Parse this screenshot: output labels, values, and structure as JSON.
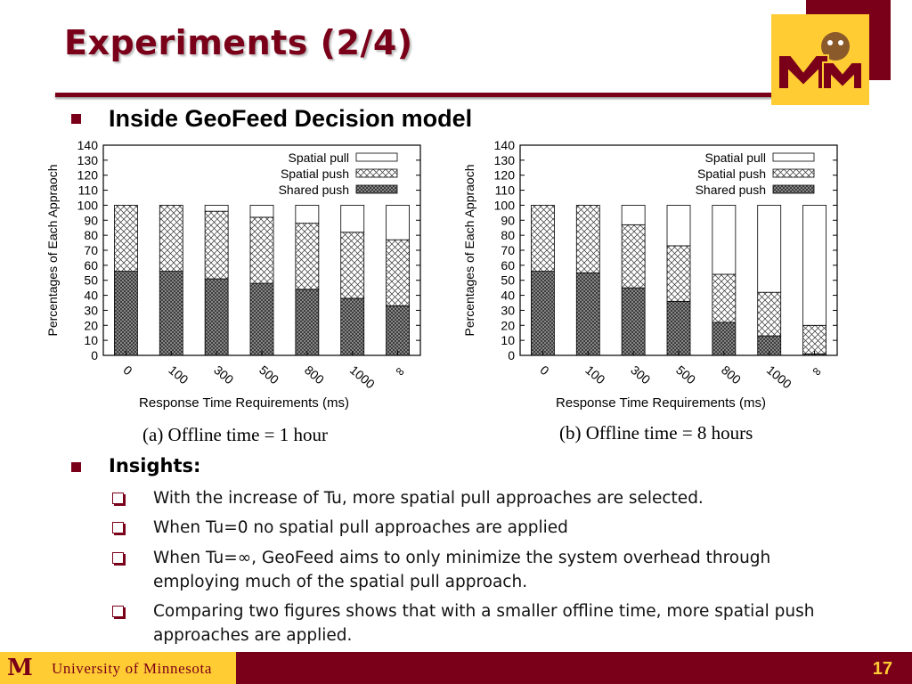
{
  "slide": {
    "title": "Experiments (2/4)",
    "main_bullet": "Inside GeoFeed Decision model",
    "page_number": "17",
    "footer": {
      "university": "University of Minnesota",
      "logo_letter": "M"
    }
  },
  "colors": {
    "maroon": "#7a0019",
    "gold": "#ffcc33"
  },
  "captions": [
    "(a) Offline time = 1 hour",
    "(b) Offline time = 8 hours"
  ],
  "insights": {
    "title": "Insights:",
    "items": [
      "With the increase of Tu, more spatial pull approaches are selected.",
      "When Tu=0 no spatial pull approaches are applied",
      "When Tu=∞, GeoFeed aims to only minimize the system overhead through employing much of the spatial pull approach.",
      "Comparing two figures shows that with a smaller offline time, more spatial push approaches are applied."
    ]
  },
  "chart_data": [
    {
      "type": "bar",
      "stacked": true,
      "xlabel": "Response Time Requirements (ms)",
      "ylabel": "Percentages of Each Appraoch",
      "ylim": [
        0,
        140
      ],
      "yticks": [
        0,
        10,
        20,
        30,
        40,
        50,
        60,
        70,
        80,
        90,
        100,
        110,
        120,
        130,
        140
      ],
      "categories": [
        "0",
        "100",
        "300",
        "500",
        "800",
        "1000",
        "∞"
      ],
      "legend_position": "top-right",
      "series": [
        {
          "name": "Shared push",
          "values": [
            56,
            56,
            51,
            48,
            44,
            38,
            33
          ]
        },
        {
          "name": "Spatial push",
          "values": [
            44,
            44,
            45,
            44,
            44,
            44,
            44
          ]
        },
        {
          "name": "Spatial pull",
          "values": [
            0,
            0,
            4,
            8,
            12,
            18,
            23
          ]
        }
      ]
    },
    {
      "type": "bar",
      "stacked": true,
      "xlabel": "Response Time Requirements (ms)",
      "ylabel": "Percentages of Each Appraoch",
      "ylim": [
        0,
        140
      ],
      "yticks": [
        0,
        10,
        20,
        30,
        40,
        50,
        60,
        70,
        80,
        90,
        100,
        110,
        120,
        130,
        140
      ],
      "categories": [
        "0",
        "100",
        "300",
        "500",
        "800",
        "1000",
        "∞"
      ],
      "legend_position": "top-right",
      "series": [
        {
          "name": "Shared push",
          "values": [
            56,
            55,
            45,
            36,
            22,
            13,
            1
          ]
        },
        {
          "name": "Spatial push",
          "values": [
            44,
            45,
            42,
            37,
            32,
            29,
            19
          ]
        },
        {
          "name": "Spatial pull",
          "values": [
            0,
            0,
            13,
            27,
            46,
            58,
            80
          ]
        }
      ]
    }
  ]
}
